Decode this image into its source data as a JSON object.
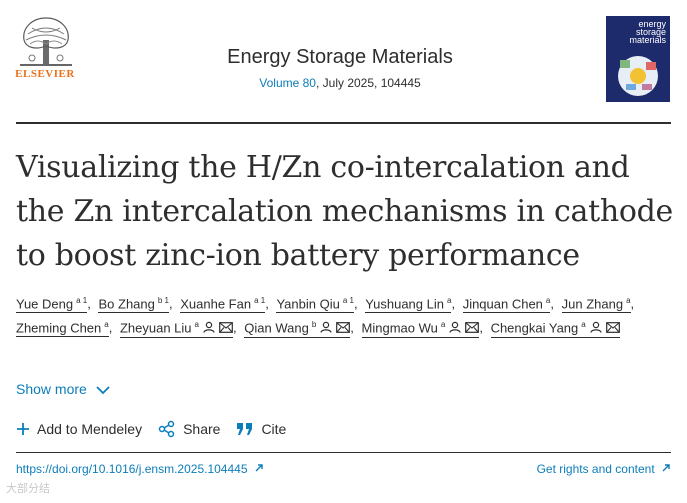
{
  "publisher": {
    "name": "ELSEVIER"
  },
  "journal": {
    "title": "Energy Storage Materials",
    "volume_link": "Volume 80",
    "meta_rest": ", July 2025, 104445",
    "cover_title": "energy storage materials"
  },
  "article": {
    "title": "Visualizing the H/Zn co-intercalation and the Zn intercalation mechanisms in cathode to boost zinc-ion battery performance"
  },
  "authors": [
    {
      "name": "Yue Deng",
      "sup": "a 1",
      "person_icon": false,
      "mail_icon": false
    },
    {
      "name": "Bo Zhang",
      "sup": "b 1",
      "person_icon": false,
      "mail_icon": false
    },
    {
      "name": "Xuanhe Fan",
      "sup": "a 1",
      "person_icon": false,
      "mail_icon": false
    },
    {
      "name": "Yanbin Qiu",
      "sup": "a 1",
      "person_icon": false,
      "mail_icon": false
    },
    {
      "name": "Yushuang Lin",
      "sup": "a",
      "person_icon": false,
      "mail_icon": false
    },
    {
      "name": "Jinquan Chen",
      "sup": "a",
      "person_icon": false,
      "mail_icon": false
    },
    {
      "name": "Jun Zhang",
      "sup": "a",
      "person_icon": false,
      "mail_icon": false
    },
    {
      "name": "Zheming Chen",
      "sup": "a",
      "person_icon": false,
      "mail_icon": false
    },
    {
      "name": "Zheyuan Liu",
      "sup": "a",
      "person_icon": true,
      "mail_icon": true
    },
    {
      "name": "Qian Wang",
      "sup": "b",
      "person_icon": true,
      "mail_icon": true
    },
    {
      "name": "Mingmao Wu",
      "sup": "a",
      "person_icon": true,
      "mail_icon": true
    },
    {
      "name": "Chengkai Yang",
      "sup": "a",
      "person_icon": true,
      "mail_icon": true
    }
  ],
  "show_more": "Show more",
  "actions": {
    "mendeley": "Add to Mendeley",
    "share": "Share",
    "cite": "Cite"
  },
  "footer": {
    "doi": "https://doi.org/10.1016/j.ensm.2025.104445",
    "rights": "Get rights and content"
  },
  "watermark": "大部分结",
  "colors": {
    "link": "#0c7dbb",
    "publisher_orange": "#e9711c",
    "text": "#2e2e2e"
  }
}
